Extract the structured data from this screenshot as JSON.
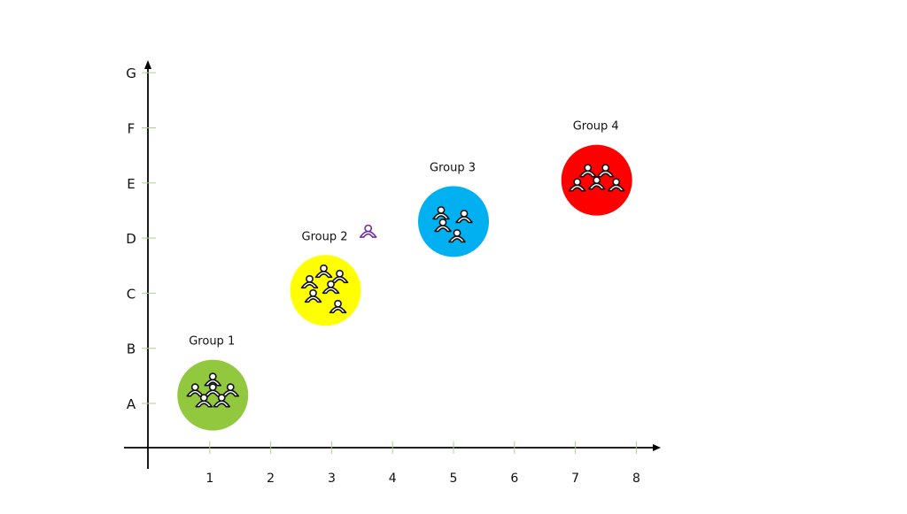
{
  "chart_data": {
    "type": "scatter",
    "x_ticks": [
      "1",
      "2",
      "3",
      "4",
      "5",
      "6",
      "7",
      "8"
    ],
    "y_ticks": [
      "A",
      "B",
      "C",
      "D",
      "E",
      "F",
      "G"
    ],
    "xlim": [
      0,
      8.4
    ],
    "ylim": [
      "",
      "G"
    ],
    "grid": false,
    "axis_color": "#000000",
    "tick_color": "#a9d18e",
    "groups": [
      {
        "label": "Group 1",
        "x": 1.05,
        "y": 1.15,
        "y_nearest": "A",
        "color": "#92c83e",
        "people": 6
      },
      {
        "label": "Group 2",
        "x": 2.9,
        "y": 3.05,
        "y_nearest": "C",
        "color": "#ffff00",
        "people": 6
      },
      {
        "label": "Group 3",
        "x": 5.0,
        "y": 4.3,
        "y_nearest": "D",
        "color": "#00b0f0",
        "people": 4
      },
      {
        "label": "Group 4",
        "x": 7.35,
        "y": 5.05,
        "y_nearest": "E",
        "color": "#ff0000",
        "people": 5
      }
    ],
    "loose_person": {
      "x": 3.6,
      "y": 4.0,
      "color": "#7030a0",
      "icon": "person-icon"
    }
  }
}
